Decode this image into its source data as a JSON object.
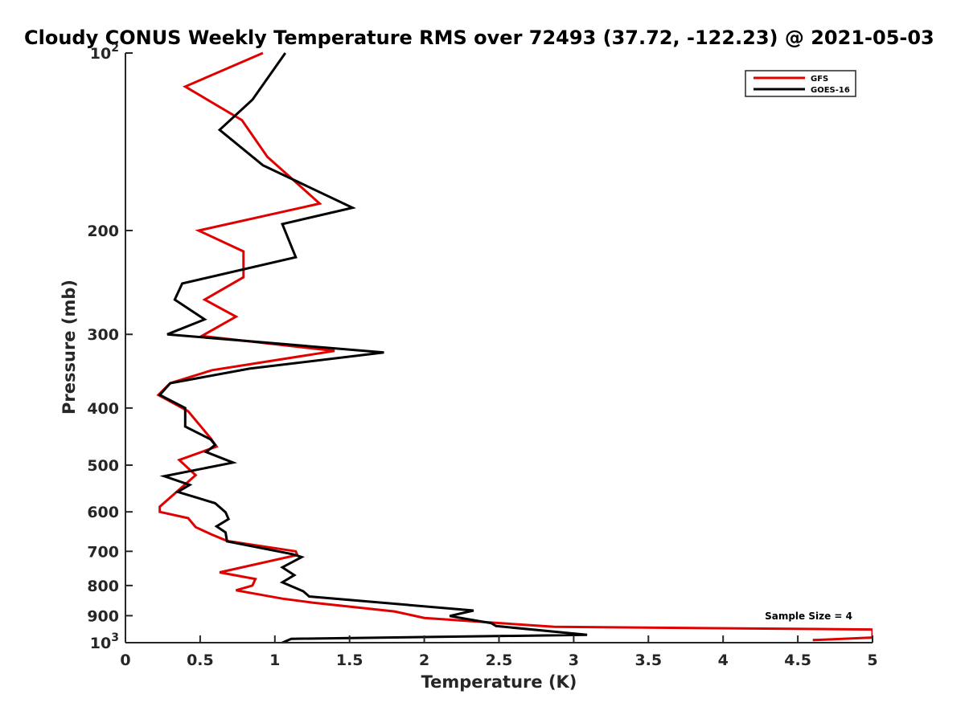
{
  "chart_data": {
    "type": "line",
    "title": "Cloudy CONUS Weekly Temperature RMS over 72493 (37.72, -122.23) @ 2021-05-03",
    "xlabel": "Temperature (K)",
    "ylabel": "Pressure (mb)",
    "xlim": [
      0,
      5
    ],
    "ylim": [
      100,
      1000
    ],
    "y_scale": "log",
    "y_reversed": true,
    "grid": false,
    "legend_position": "top-right",
    "x_ticks": [
      0,
      0.5,
      1,
      1.5,
      2,
      2.5,
      3,
      3.5,
      4,
      4.5,
      5
    ],
    "x_tick_labels": [
      "0",
      "0.5",
      "1",
      "1.5",
      "2",
      "2.5",
      "3",
      "3.5",
      "4",
      "4.5",
      "5"
    ],
    "y_ticks": [
      100,
      200,
      300,
      400,
      500,
      600,
      700,
      800,
      900,
      1000
    ],
    "y_tick_labels": [
      "10^2",
      "200",
      "300",
      "400",
      "500",
      "600",
      "700",
      "800",
      "900",
      "10^3"
    ],
    "annotation": "Sample Size = 4",
    "series": [
      {
        "name": "GFS",
        "color": "#e00000",
        "points": [
          [
            0.92,
            100
          ],
          [
            0.4,
            114
          ],
          [
            0.78,
            130
          ],
          [
            0.95,
            150
          ],
          [
            1.3,
            180
          ],
          [
            0.49,
            200
          ],
          [
            0.79,
            217
          ],
          [
            0.79,
            240
          ],
          [
            0.53,
            262
          ],
          [
            0.74,
            280
          ],
          [
            0.51,
            302
          ],
          [
            1.4,
            320
          ],
          [
            0.58,
            345
          ],
          [
            0.3,
            363
          ],
          [
            0.22,
            380
          ],
          [
            0.42,
            405
          ],
          [
            0.57,
            450
          ],
          [
            0.61,
            465
          ],
          [
            0.36,
            490
          ],
          [
            0.47,
            520
          ],
          [
            0.23,
            588
          ],
          [
            0.23,
            600
          ],
          [
            0.42,
            615
          ],
          [
            0.47,
            637
          ],
          [
            0.58,
            656
          ],
          [
            0.68,
            672
          ],
          [
            1.14,
            700
          ],
          [
            1.15,
            710
          ],
          [
            0.63,
            760
          ],
          [
            0.87,
            780
          ],
          [
            0.85,
            800
          ],
          [
            0.74,
            815
          ],
          [
            1.05,
            842
          ],
          [
            1.25,
            855
          ],
          [
            1.8,
            885
          ],
          [
            2.0,
            908
          ],
          [
            2.87,
            940
          ],
          [
            5.0,
            950
          ],
          [
            5.0,
            980
          ],
          [
            4.6,
            990
          ]
        ]
      },
      {
        "name": "GOES-16",
        "color": "#000000",
        "points": [
          [
            1.07,
            100
          ],
          [
            0.85,
            120
          ],
          [
            0.63,
            135
          ],
          [
            0.92,
            155
          ],
          [
            1.52,
            183
          ],
          [
            1.05,
            195
          ],
          [
            1.14,
            222
          ],
          [
            0.38,
            246
          ],
          [
            0.33,
            262
          ],
          [
            0.53,
            283
          ],
          [
            0.28,
            300
          ],
          [
            1.73,
            322
          ],
          [
            0.83,
            343
          ],
          [
            0.3,
            363
          ],
          [
            0.23,
            380
          ],
          [
            0.4,
            400
          ],
          [
            0.4,
            420
          ],
          [
            0.4,
            430
          ],
          [
            0.57,
            452
          ],
          [
            0.6,
            462
          ],
          [
            0.54,
            475
          ],
          [
            0.72,
            495
          ],
          [
            0.26,
            522
          ],
          [
            0.43,
            540
          ],
          [
            0.35,
            555
          ],
          [
            0.6,
            580
          ],
          [
            0.67,
            601
          ],
          [
            0.69,
            617
          ],
          [
            0.61,
            635
          ],
          [
            0.67,
            650
          ],
          [
            0.68,
            673
          ],
          [
            1.12,
            708
          ],
          [
            1.18,
            716
          ],
          [
            1.05,
            745
          ],
          [
            1.13,
            768
          ],
          [
            1.05,
            790
          ],
          [
            1.19,
            818
          ],
          [
            1.23,
            835
          ],
          [
            2.33,
            882
          ],
          [
            2.17,
            901
          ],
          [
            2.45,
            927
          ],
          [
            2.48,
            937
          ],
          [
            3.09,
            970
          ],
          [
            1.11,
            985
          ],
          [
            1.05,
            1000
          ]
        ]
      }
    ]
  }
}
